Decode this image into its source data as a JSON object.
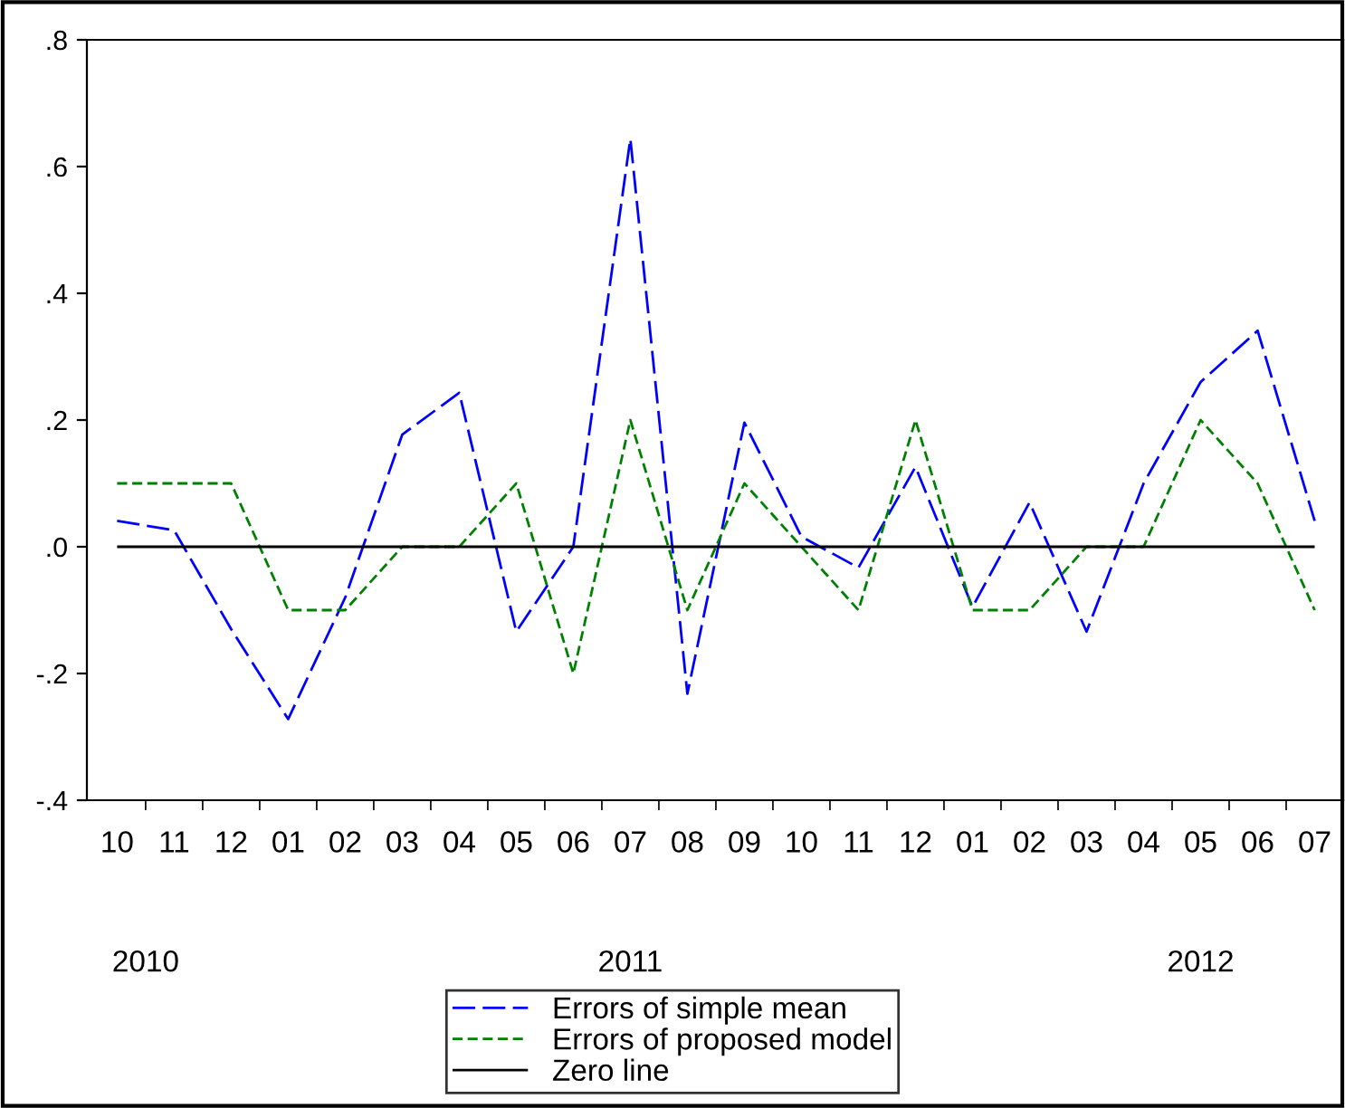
{
  "chart_data": {
    "type": "line",
    "categories": [
      "10",
      "11",
      "12",
      "01",
      "02",
      "03",
      "04",
      "05",
      "06",
      "07",
      "08",
      "09",
      "10",
      "11",
      "12",
      "01",
      "02",
      "03",
      "04",
      "05",
      "06",
      "07"
    ],
    "series": [
      {
        "name": "Errors of simple mean",
        "color": "#0000ff",
        "line_style": "dashed",
        "values": [
          0.041,
          0.026,
          -0.13,
          -0.272,
          -0.08,
          0.177,
          0.243,
          -0.134,
          0.0,
          0.644,
          -0.232,
          0.196,
          0.016,
          -0.033,
          0.126,
          -0.095,
          0.07,
          -0.134,
          0.1,
          0.26,
          0.341,
          0.041
        ]
      },
      {
        "name": "Errors of proposed model",
        "color": "#008000",
        "line_style": "dotted",
        "values": [
          0.1,
          0.1,
          0.1,
          -0.1,
          -0.1,
          0.0,
          0.0,
          0.1,
          -0.2,
          0.2,
          -0.1,
          0.1,
          0.0,
          -0.1,
          0.2,
          -0.1,
          -0.1,
          0.0,
          0.0,
          0.2,
          0.1,
          -0.1
        ]
      },
      {
        "name": "Zero line",
        "color": "#000000",
        "line_style": "solid",
        "values": [
          0,
          0,
          0,
          0,
          0,
          0,
          0,
          0,
          0,
          0,
          0,
          0,
          0,
          0,
          0,
          0,
          0,
          0,
          0,
          0,
          0,
          0
        ]
      }
    ],
    "ylim": [
      -0.4,
      0.8
    ],
    "yticks": [
      {
        "value": -0.4,
        "label": "-.4"
      },
      {
        "value": -0.2,
        "label": "-.2"
      },
      {
        "value": 0.0,
        "label": ".0"
      },
      {
        "value": 0.2,
        "label": ".2"
      },
      {
        "value": 0.4,
        "label": ".4"
      },
      {
        "value": 0.6,
        "label": ".6"
      },
      {
        "value": 0.8,
        "label": ".8"
      }
    ],
    "annotations": [
      "2010",
      "2011",
      "2012"
    ],
    "legend": "bottom",
    "grid": false,
    "marker": "none"
  }
}
